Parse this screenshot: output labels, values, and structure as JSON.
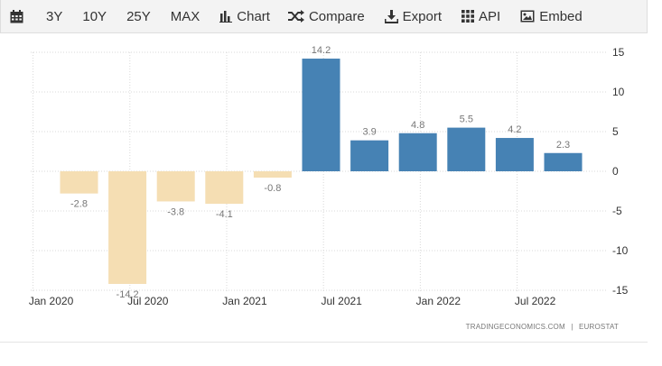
{
  "toolbar": {
    "range_buttons": [
      "3Y",
      "10Y",
      "25Y",
      "MAX"
    ],
    "chart_label": "Chart",
    "compare_label": "Compare",
    "export_label": "Export",
    "api_label": "API",
    "embed_label": "Embed"
  },
  "source": {
    "site": "TRADINGECONOMICS.COM",
    "separator": "|",
    "provider": "EUROSTAT"
  },
  "chart_data": {
    "type": "bar",
    "categories": [
      "2020-Q1",
      "2020-Q2",
      "2020-Q3",
      "2020-Q4",
      "2021-Q1",
      "2021-Q2",
      "2021-Q3",
      "2021-Q4",
      "2022-Q1",
      "2022-Q2",
      "2022-Q3"
    ],
    "values": [
      -2.8,
      -14.2,
      -3.8,
      -4.1,
      -0.8,
      14.2,
      3.9,
      4.8,
      5.5,
      4.2,
      2.3
    ],
    "data_labels": [
      "-2.8",
      "-14.2",
      "-3.8",
      "-4.1",
      "-0.8",
      "14.2",
      "3.9",
      "4.8",
      "5.5",
      "4.2",
      "2.3"
    ],
    "x_tick_labels": [
      "Jan 2020",
      "Jul 2020",
      "Jan 2021",
      "Jul 2021",
      "Jan 2022",
      "Jul 2022"
    ],
    "y_ticks": [
      15,
      10,
      5,
      0,
      -5,
      -10,
      -15
    ],
    "ylim": [
      -15,
      15
    ],
    "y_axis_side": "right",
    "grid": "dotted",
    "legend": "none",
    "colors": {
      "positive": "#4682b4",
      "negative": "#f5deb3",
      "label": "#777777"
    },
    "title": "",
    "xlabel": "",
    "ylabel": ""
  }
}
